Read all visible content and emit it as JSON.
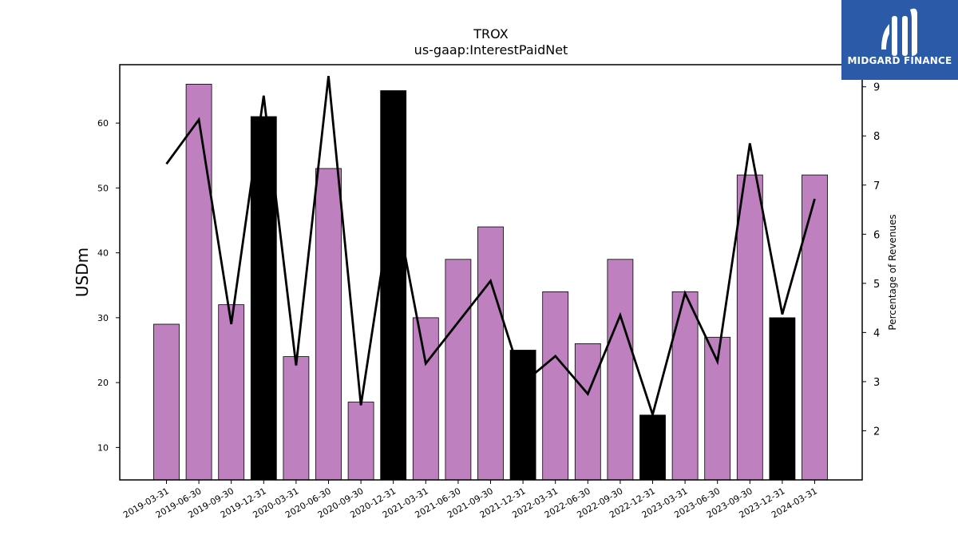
{
  "chart_data": {
    "type": "bar",
    "title": "TROX",
    "subtitle": "us-gaap:InterestPaidNet",
    "ylabel": "USDm",
    "y2label": "Percentage of Revenues",
    "ylim": [
      5,
      69
    ],
    "y2lim": [
      1.0,
      9.45
    ],
    "yticks": [
      10,
      20,
      30,
      40,
      50,
      60
    ],
    "y2ticks": [
      2,
      3,
      4,
      5,
      6,
      7,
      8,
      9
    ],
    "categories": [
      "2019-03-31",
      "2019-06-30",
      "2019-09-30",
      "2019-12-31",
      "2020-03-31",
      "2020-06-30",
      "2020-09-30",
      "2020-12-31",
      "2021-03-31",
      "2021-06-30",
      "2021-09-30",
      "2021-12-31",
      "2022-03-31",
      "2022-06-30",
      "2022-09-30",
      "2022-12-31",
      "2023-03-31",
      "2023-06-30",
      "2023-09-30",
      "2023-12-31",
      "2024-03-31"
    ],
    "series": [
      {
        "type": "bar",
        "values": [
          29,
          66,
          32,
          61,
          24,
          53,
          17,
          65,
          30,
          39,
          44,
          25,
          34,
          26,
          39,
          15,
          34,
          27,
          52,
          30,
          52
        ]
      },
      {
        "type": "line",
        "axis": "right",
        "values": [
          7.43,
          8.33,
          4.17,
          8.82,
          3.33,
          9.22,
          2.52,
          6.82,
          3.37,
          4.21,
          5.05,
          2.97,
          3.52,
          2.75,
          4.35,
          2.33,
          4.8,
          3.41,
          7.85,
          4.37,
          6.72
        ]
      }
    ],
    "colors": {
      "bar_default": "#bf80bf",
      "bar_q4": "#000000",
      "line": "#000000"
    },
    "q4_black": true
  },
  "logo": {
    "text": "MIDGARD FINANCE"
  }
}
